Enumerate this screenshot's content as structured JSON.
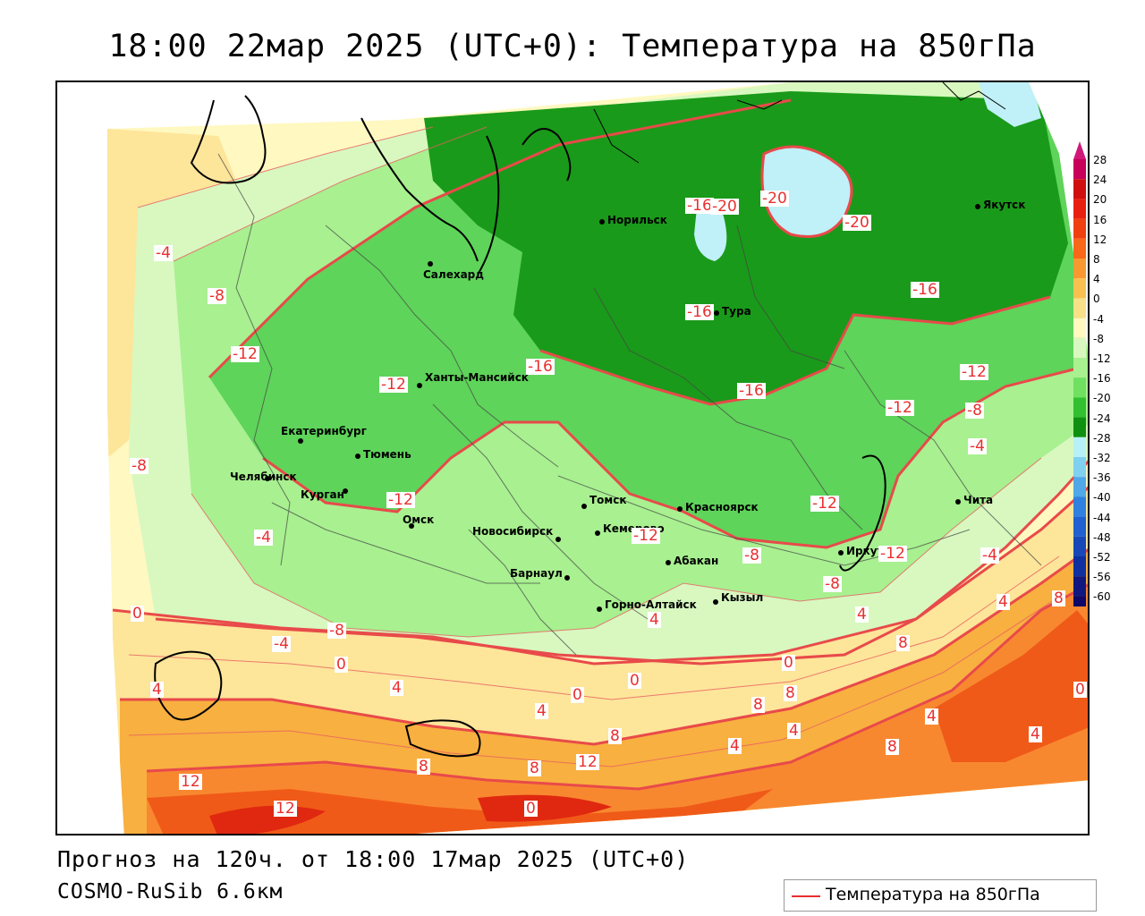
{
  "title": "18:00 22мар 2025 (UTC+0): Температура на 850гПа",
  "footer": {
    "forecast": "Прогноз на 120ч. от 18:00 17мар 2025 (UTC+0)",
    "model": "COSMO-RuSib 6.6км"
  },
  "legend": {
    "line_label": "Температура на 850гПа",
    "line_color": "#e83030"
  },
  "colorbar": {
    "levels": [
      "28",
      "24",
      "20",
      "16",
      "12",
      "8",
      "4",
      "0",
      "-4",
      "-8",
      "-12",
      "-16",
      "-20",
      "-24",
      "-28",
      "-32",
      "-36",
      "-40",
      "-44",
      "-48",
      "-52",
      "-56",
      "-60"
    ],
    "colors": [
      "#c8005a",
      "#d01010",
      "#e82010",
      "#f04010",
      "#f86818",
      "#f89830",
      "#f8c050",
      "#f8e088",
      "#fff8c0",
      "#d8f8c0",
      "#a8f090",
      "#70e060",
      "#30c030",
      "#109010",
      "#b8f0f8",
      "#80d0f0",
      "#50a8e8",
      "#3080e0",
      "#2060d0",
      "#1848b8",
      "#1030a0",
      "#101880",
      "#100868"
    ]
  },
  "cities": [
    {
      "name": "Норильск"
    },
    {
      "name": "Якутск"
    },
    {
      "name": "Салехард"
    },
    {
      "name": "Тура"
    },
    {
      "name": "Ханты-Мансийск"
    },
    {
      "name": "Екатеринбург"
    },
    {
      "name": "Тюмень"
    },
    {
      "name": "Челябинск"
    },
    {
      "name": "Курган"
    },
    {
      "name": "Омск"
    },
    {
      "name": "Новосибирск"
    },
    {
      "name": "Томск"
    },
    {
      "name": "Кемерово"
    },
    {
      "name": "Красноярск"
    },
    {
      "name": "Абакан"
    },
    {
      "name": "Барнаул"
    },
    {
      "name": "Горно-Алтайск"
    },
    {
      "name": "Кызыл"
    },
    {
      "name": "Иркутск"
    },
    {
      "name": "Чита"
    }
  ],
  "isotherm_labels": [
    "-4",
    "-8",
    "-12",
    "-8",
    "-4",
    "-16",
    "-12",
    "-16",
    "-20",
    "-20",
    "-20",
    "-16",
    "-16",
    "-16",
    "-12",
    "-12",
    "-12",
    "-8",
    "-4",
    "-12",
    "-12",
    "-8",
    "-12",
    "-8",
    "-4",
    "0",
    "-4",
    "-8",
    "0",
    "4",
    "4",
    "0",
    "4",
    "0",
    "4",
    "8",
    "8",
    "12",
    "8",
    "12",
    "8",
    "4",
    "0",
    "4",
    "8",
    "4",
    "8",
    "4",
    "0",
    "4",
    "8",
    "4",
    "8",
    "12",
    "0"
  ]
}
